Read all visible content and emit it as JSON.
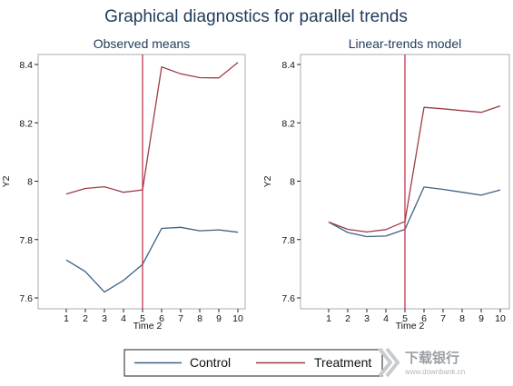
{
  "title": "Graphical diagnostics for parallel trends",
  "legend": {
    "placement": "bottom"
  },
  "colors": {
    "control": "#3e6181",
    "treatment": "#9e3c45",
    "vline": "#c8354c",
    "text": "#1f3a5a"
  },
  "watermark": {
    "main": "下载银行",
    "sub": "www.downbank.cn"
  },
  "chart_data": [
    {
      "type": "line",
      "title": "Observed means",
      "xlabel": "Time 2",
      "ylabel": "Y2",
      "x": [
        1,
        2,
        3,
        4,
        5,
        6,
        7,
        8,
        9,
        10
      ],
      "xlim": [
        1,
        10
      ],
      "ylim": [
        7.6,
        8.4
      ],
      "yticks": [
        "7.6",
        "7.8",
        "8",
        "8.2",
        "8.4"
      ],
      "vline": 5,
      "series": [
        {
          "name": "Control",
          "values": [
            7.73,
            7.69,
            7.62,
            7.66,
            7.715,
            7.838,
            7.842,
            7.83,
            7.833,
            7.825
          ]
        },
        {
          "name": "Treatment",
          "values": [
            7.956,
            7.975,
            7.981,
            7.962,
            7.97,
            8.392,
            8.368,
            8.355,
            8.354,
            8.407
          ]
        }
      ]
    },
    {
      "type": "line",
      "title": "Linear-trends model",
      "xlabel": "Time 2",
      "ylabel": "Y2",
      "x": [
        1,
        2,
        3,
        4,
        5,
        6,
        7,
        8,
        9,
        10
      ],
      "xlim": [
        1,
        10
      ],
      "ylim": [
        7.6,
        8.4
      ],
      "yticks": [
        "7.6",
        "7.8",
        "8",
        "8.2",
        "8.4"
      ],
      "vline": 5,
      "series": [
        {
          "name": "Control",
          "values": [
            7.86,
            7.824,
            7.81,
            7.812,
            7.835,
            7.98,
            7.972,
            7.962,
            7.952,
            7.97
          ]
        },
        {
          "name": "Treatment",
          "values": [
            7.86,
            7.835,
            7.826,
            7.834,
            7.862,
            8.253,
            8.248,
            8.242,
            8.236,
            8.258
          ]
        }
      ]
    }
  ]
}
